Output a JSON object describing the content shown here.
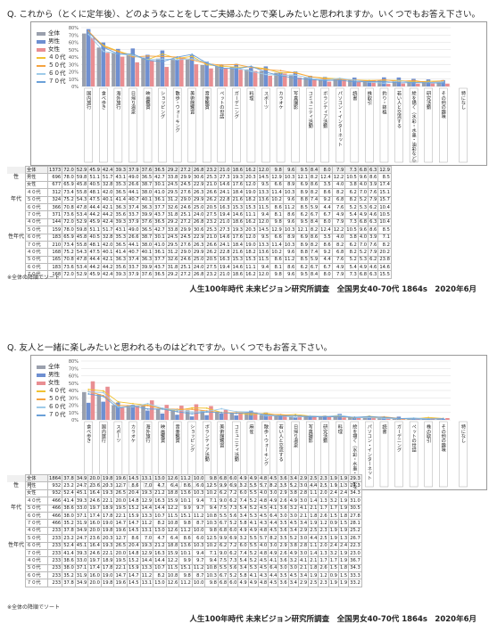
{
  "chart1": {
    "question": "Q. これから（とくに定年後）、どのようなことをしてご夫婦ふたりで楽しみたいと思われますか。いくつでもお答え下さい。",
    "source": "人生100年時代 未来ビジョン研究所調査　全国男女40-70代 1864s　2020年6月",
    "note": "※全体の降順でソート",
    "legend": [
      {
        "name": "全体",
        "color": "#9aa0ad",
        "kind": "bar"
      },
      {
        "name": "男性",
        "color": "#6e8fd1",
        "kind": "bar"
      },
      {
        "name": "女性",
        "color": "#e98e92",
        "kind": "bar"
      },
      {
        "name": "４０代",
        "color": "#f1c232",
        "kind": "line"
      },
      {
        "name": "５０代",
        "color": "#f6a340",
        "kind": "line"
      },
      {
        "name": "６０代",
        "color": "#9ecbe9",
        "kind": "line"
      },
      {
        "name": "７０代",
        "color": "#6aa0d8",
        "kind": "line"
      }
    ],
    "row_labels": [
      "全体",
      "男性",
      "女性",
      "４０代",
      "５０代",
      "６０代",
      "７０代",
      "４０代",
      "５０代",
      "６０代",
      "７０代",
      "４０代",
      "５０代",
      "６０代",
      "７０代"
    ],
    "group_labels": {
      "sex": "性",
      "age": "年代",
      "sexage": "性年代",
      "male": "男性",
      "female": "女性"
    },
    "ns": [
      1373,
      696,
      677,
      312,
      324,
      366,
      371,
      144,
      159,
      183,
      210,
      168,
      165,
      183,
      168
    ],
    "tail_header": [
      "特になし"
    ],
    "tail": [
      "12.9",
      "8.5",
      "17.4",
      "15.1",
      "15.7",
      "10.4",
      "10.5",
      "10.4",
      "8.5",
      "7.1",
      "8.2",
      "20.2",
      "23.8",
      "14.6",
      "15.5"
    ]
  },
  "chart2": {
    "question": "Q. 友人と一緒に楽しみたいと思われるものはどれですか。いくつでもお答え下さい。",
    "source": "人生100年時代 未来ビジョン研究所調査　全国男女40-70代 1864s　2020年6月",
    "note": "※全体の降順でソート",
    "legend": [
      {
        "name": "全体",
        "color": "#9aa0ad",
        "kind": "bar"
      },
      {
        "name": "男性",
        "color": "#6e8fd1",
        "kind": "bar"
      },
      {
        "name": "女性",
        "color": "#e98e92",
        "kind": "bar"
      },
      {
        "name": "４０代",
        "color": "#f1c232",
        "kind": "line"
      },
      {
        "name": "５０代",
        "color": "#f6a340",
        "kind": "line"
      },
      {
        "name": "６０代",
        "color": "#9ecbe9",
        "kind": "line"
      },
      {
        "name": "７０代",
        "color": "#6aa0d8",
        "kind": "line"
      }
    ],
    "row_labels": [
      "全体",
      "男性",
      "女性",
      "４０代",
      "５０代",
      "６０代",
      "７０代",
      "４０代",
      "５０代",
      "６０代",
      "７０代",
      "４０代",
      "５０代",
      "６０代",
      "７０代"
    ],
    "group_labels": {
      "sex": "性",
      "age": "年代",
      "sexage": "性年代",
      "male": "男性",
      "female": "女性"
    },
    "ns": [
      1864,
      932,
      932,
      466,
      466,
      466,
      466,
      233,
      233,
      233,
      233,
      233,
      233,
      233,
      233
    ],
    "tail_header": [
      "特になし"
    ],
    "tail": [
      "29.3",
      "24.3",
      "34.3",
      "31.0",
      "30.5",
      "27.8",
      "28.1",
      "25.2",
      "26.7",
      "22.3",
      "23.0",
      "36.7",
      "34.3",
      "33.3",
      "33.2"
    ]
  },
  "chart_data": [
    {
      "type": "bar",
      "ylim": [
        0,
        80
      ],
      "yticks": [
        "0%",
        "10%",
        "20%",
        "30%",
        "40%",
        "50%",
        "60%",
        "70%",
        "80%"
      ],
      "categories": [
        "国内旅行",
        "食べ歩き",
        "海外旅行",
        "日帰り温泉",
        "映画鑑賞",
        "ショッピング",
        "散歩・ウォーキング",
        "美術館鑑賞",
        "音楽鑑賞",
        "ペットの世話",
        "ガーデニング",
        "料理",
        "スポーツ",
        "カラオケ",
        "写真撮影",
        "コミュニティ活動",
        "ボランティア活動",
        "パソコン・インターネット",
        "読書",
        "株取引",
        "釣り・鉢植",
        "若い人と交流する",
        "絵を描く（水彩・水墨・油彩など）",
        "研究活動",
        "その他の趣味"
      ],
      "series": [
        {
          "name": "全体",
          "values": [
            72.0,
            52.9,
            45.9,
            42.4,
            39.3,
            37.9,
            37.6,
            36.5,
            29.2,
            27.2,
            26.8,
            23.2,
            21.0,
            18.6,
            16.2,
            12.0,
            9.8,
            9.6,
            9.5,
            8.4,
            8.0,
            7.9,
            7.3,
            6.8,
            6.3
          ]
        },
        {
          "name": "男性",
          "values": [
            78.0,
            59.8,
            51.1,
            51.7,
            43.1,
            49.0,
            36.5,
            42.7,
            33.8,
            29.9,
            30.6,
            25.3,
            27.3,
            19.3,
            20.3,
            14.5,
            12.9,
            10.3,
            12.1,
            8.2,
            12.4,
            12.2,
            10.5,
            9.6,
            8.6
          ]
        },
        {
          "name": "女性",
          "values": [
            65.9,
            45.8,
            40.5,
            32.8,
            35.3,
            26.6,
            38.7,
            30.1,
            24.5,
            24.5,
            22.9,
            21.0,
            14.6,
            17.6,
            12.0,
            9.5,
            6.6,
            8.9,
            6.9,
            8.6,
            3.5,
            4.0,
            3.8,
            4.0,
            3.9
          ]
        },
        {
          "name": "４０代",
          "values": [
            73.4,
            55.8,
            48.1,
            42.0,
            36.5,
            44.1,
            38.0,
            41.0,
            29.5,
            27.6,
            26.3,
            26.6,
            24.1,
            18.4,
            19.0,
            13.3,
            11.4,
            10.3,
            8.9,
            8.2,
            8.6,
            8.2,
            6.2,
            7.0,
            7.6
          ]
        },
        {
          "name": "５０代",
          "values": [
            75.2,
            54.3,
            47.5,
            40.1,
            41.4,
            40.7,
            40.1,
            36.1,
            31.2,
            29.0,
            29.9,
            26.2,
            22.8,
            21.6,
            18.2,
            13.6,
            10.2,
            9.6,
            8.8,
            7.4,
            9.2,
            6.8,
            8.2,
            5.2,
            7.9
          ]
        },
        {
          "name": "６０代",
          "values": [
            70.8,
            47.8,
            44.4,
            42.1,
            36.3,
            37.4,
            36.3,
            37.7,
            32.6,
            24.6,
            25.0,
            20.5,
            16.3,
            15.3,
            15.3,
            11.5,
            8.6,
            11.2,
            8.5,
            5.9,
            4.4,
            7.6,
            5.2,
            5.3,
            6.2
          ]
        },
        {
          "name": "７０代",
          "values": [
            73.6,
            53.4,
            44.2,
            44.2,
            35.6,
            33.7,
            39.9,
            43.7,
            31.8,
            25.1,
            24.0,
            27.5,
            19.4,
            14.6,
            11.1,
            9.4,
            8.1,
            8.6,
            6.2,
            6.7,
            6.7,
            4.9,
            5.4,
            4.9,
            4.6
          ]
        }
      ]
    },
    {
      "type": "bar",
      "ylim": [
        0,
        80
      ],
      "yticks": [
        "0%",
        "10%",
        "20%",
        "30%",
        "40%",
        "50%",
        "60%",
        "70%",
        "80%"
      ],
      "categories": [
        "食べ歩き",
        "国内旅行",
        "スポーツ",
        "カラオケ",
        "海外旅行",
        "映画鑑賞",
        "音楽鑑賞",
        "ショッピング",
        "ボランティア活動",
        "美術館鑑賞",
        "コミュニティ活動",
        "麻雀",
        "散歩・ウォーキング",
        "若い人と交流する",
        "日帰り温泉",
        "写真撮影",
        "研究活動",
        "料理",
        "絵を描く（水彩・水墨・油彩など）",
        "パソコン・インターネット",
        "読書",
        "ガーデニング",
        "ペットの世話",
        "株の取引",
        "その他の趣味"
      ],
      "series": [
        {
          "name": "全体",
          "values": [
            37.8,
            34.9,
            20.0,
            19.8,
            19.6,
            14.5,
            13.1,
            13.0,
            12.6,
            11.2,
            10.0,
            9.8,
            6.8,
            6.0,
            4.9,
            4.9,
            4.8,
            4.5,
            3.6,
            3.4,
            2.9,
            2.5,
            2.3,
            1.9,
            1.9
          ]
        },
        {
          "name": "男性",
          "values": [
            23.2,
            24.7,
            23.6,
            20.3,
            12.7,
            8.6,
            7.0,
            4.7,
            6.4,
            8.6,
            6.0,
            12.5,
            9.9,
            6.9,
            3.2,
            5.5,
            5.7,
            8.2,
            3.5,
            5.2,
            3.0,
            4.4,
            2.5,
            1.9,
            1.3
          ]
        },
        {
          "name": "女性",
          "values": [
            52.4,
            45.1,
            16.4,
            19.3,
            26.5,
            20.4,
            19.3,
            21.2,
            18.8,
            13.6,
            10.3,
            10.2,
            6.2,
            7.2,
            6.0,
            5.5,
            4.0,
            3.0,
            2.9,
            3.8,
            2.8,
            1.1,
            2.0,
            2.4,
            2.4
          ]
        },
        {
          "name": "４０代",
          "values": [
            41.4,
            39.3,
            24.6,
            22.1,
            20.0,
            14.8,
            12.9,
            16.3,
            15.9,
            10.1,
            9.4,
            7.1,
            9.0,
            6.2,
            7.4,
            5.2,
            4.8,
            4.9,
            2.6,
            4.9,
            3.0,
            1.4,
            1.3,
            3.2,
            1.9
          ]
        },
        {
          "name": "５０代",
          "values": [
            38.6,
            33.0,
            19.7,
            18.9,
            19.5,
            15.2,
            14.4,
            14.4,
            12.2,
            9.9,
            9.7,
            9.4,
            7.5,
            7.3,
            5.4,
            5.2,
            4.5,
            4.1,
            3.6,
            3.2,
            4.1,
            2.1,
            1.7,
            1.7,
            1.9
          ]
        },
        {
          "name": "６０代",
          "values": [
            38.0,
            37.1,
            17.4,
            17.8,
            22.1,
            15.9,
            13.3,
            10.7,
            11.5,
            15.1,
            11.2,
            10.8,
            5.5,
            5.6,
            3.4,
            5.3,
            4.5,
            6.4,
            3.0,
            3.0,
            2.1,
            1.8,
            2.6,
            1.5,
            1.8
          ]
        },
        {
          "name": "７０代",
          "values": [
            35.2,
            31.9,
            16.0,
            19.0,
            14.7,
            14.7,
            11.2,
            8.2,
            10.8,
            9.8,
            8.7,
            10.3,
            6.7,
            5.2,
            5.8,
            4.1,
            4.3,
            4.4,
            3.5,
            4.5,
            3.4,
            1.9,
            1.2,
            0.9,
            1.5
          ]
        }
      ]
    }
  ]
}
